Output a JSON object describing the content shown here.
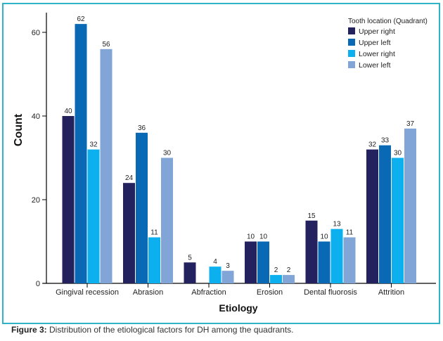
{
  "chart_data": {
    "type": "bar",
    "title": "",
    "xlabel": "Etiology",
    "ylabel": "Count",
    "ylim": [
      0,
      65
    ],
    "yticks": [
      0,
      20,
      40,
      60
    ],
    "grid": false,
    "categories": [
      "Gingival recession",
      "Abrasion",
      "Abfraction",
      "Erosion",
      "Dental fluorosis",
      "Attrition"
    ],
    "legend": {
      "title": "Tooth location (Quadrant)",
      "position": "top-right"
    },
    "series": [
      {
        "name": "Upper right",
        "color": "#24215f",
        "values": [
          40,
          24,
          5,
          10,
          15,
          32
        ]
      },
      {
        "name": "Upper left",
        "color": "#0a69b4",
        "values": [
          62,
          36,
          0,
          10,
          10,
          33
        ]
      },
      {
        "name": "Lower right",
        "color": "#0db0ee",
        "values": [
          32,
          11,
          4,
          2,
          13,
          30
        ]
      },
      {
        "name": "Lower left",
        "color": "#80a5d6",
        "values": [
          56,
          30,
          3,
          2,
          11,
          37
        ]
      }
    ]
  },
  "caption": {
    "label": "Figure 3:",
    "text": " Distribution of the etiological factors for DH among the quadrants."
  }
}
